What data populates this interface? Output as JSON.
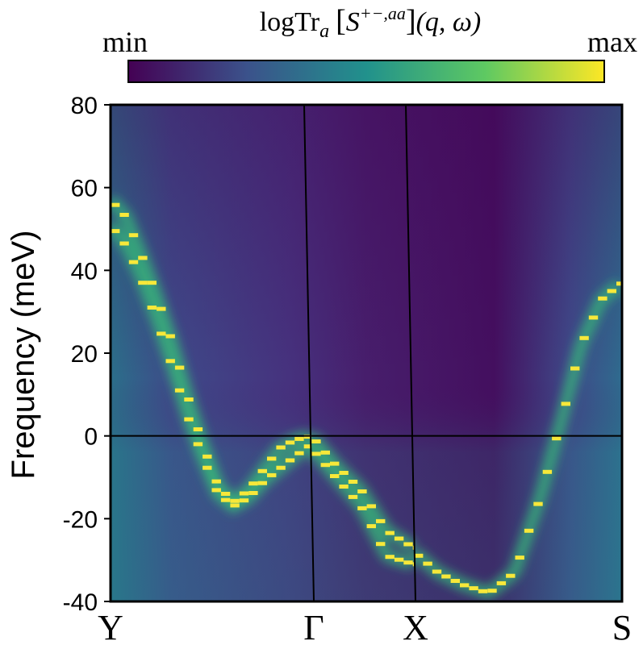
{
  "chart_data": {
    "type": "heatmap",
    "colorbar": {
      "title": "logTr",
      "title_subscript": "a",
      "title_operator": "S",
      "title_superscript": "+−,aa",
      "title_args": "(q, ω)",
      "min_label": "min",
      "max_label": "max",
      "colormap": [
        "#440154",
        "#3b528b",
        "#21918c",
        "#5ec962",
        "#fde725"
      ]
    },
    "ylabel": "Frequency (meV)",
    "ylim": [
      -40,
      80
    ],
    "yticks": [
      80,
      60,
      40,
      20,
      0,
      -20,
      -40
    ],
    "ytick_labels": [
      "80",
      "60",
      "40",
      "20",
      "0",
      "-20",
      "-40"
    ],
    "path_labels": [
      "Y",
      "Γ",
      "X",
      "S"
    ],
    "path_positions": [
      0,
      0.393,
      0.593,
      1
    ],
    "zero_line": 0,
    "bands": [
      {
        "name": "Y-Γ branch 1",
        "x": [
          0.0,
          0.03,
          0.06,
          0.09,
          0.12,
          0.15,
          0.18,
          0.21,
          0.24,
          0.27,
          0.3,
          0.33,
          0.36,
          0.393
        ],
        "y": [
          57,
          53,
          44,
          34,
          23,
          10,
          -2,
          -12,
          -16,
          -13,
          -8,
          -3,
          -1,
          0
        ]
      },
      {
        "name": "Y-Γ branch 2",
        "x": [
          0.0,
          0.03,
          0.06,
          0.09,
          0.12,
          0.15,
          0.18,
          0.21,
          0.24,
          0.27,
          0.3,
          0.33,
          0.36,
          0.393
        ],
        "y": [
          51,
          46,
          38,
          28,
          17,
          5,
          -5,
          -14,
          -17,
          -15,
          -11,
          -8,
          -5,
          -2
        ]
      },
      {
        "name": "Γ-X branch 1",
        "x": [
          0.393,
          0.44,
          0.49,
          0.54,
          0.593
        ],
        "y": [
          0,
          -7,
          -13,
          -23,
          -27
        ]
      },
      {
        "name": "Γ-X branch 2",
        "x": [
          0.393,
          0.44,
          0.49,
          0.54,
          0.593
        ],
        "y": [
          -3,
          -10,
          -17,
          -29,
          -31
        ]
      },
      {
        "name": "X-S branch",
        "x": [
          0.593,
          0.64,
          0.69,
          0.74,
          0.79,
          0.84,
          0.88,
          0.92,
          0.96,
          1.0
        ],
        "y": [
          -28,
          -33,
          -36,
          -38,
          -33,
          -15,
          3,
          22,
          33,
          37
        ]
      }
    ]
  }
}
